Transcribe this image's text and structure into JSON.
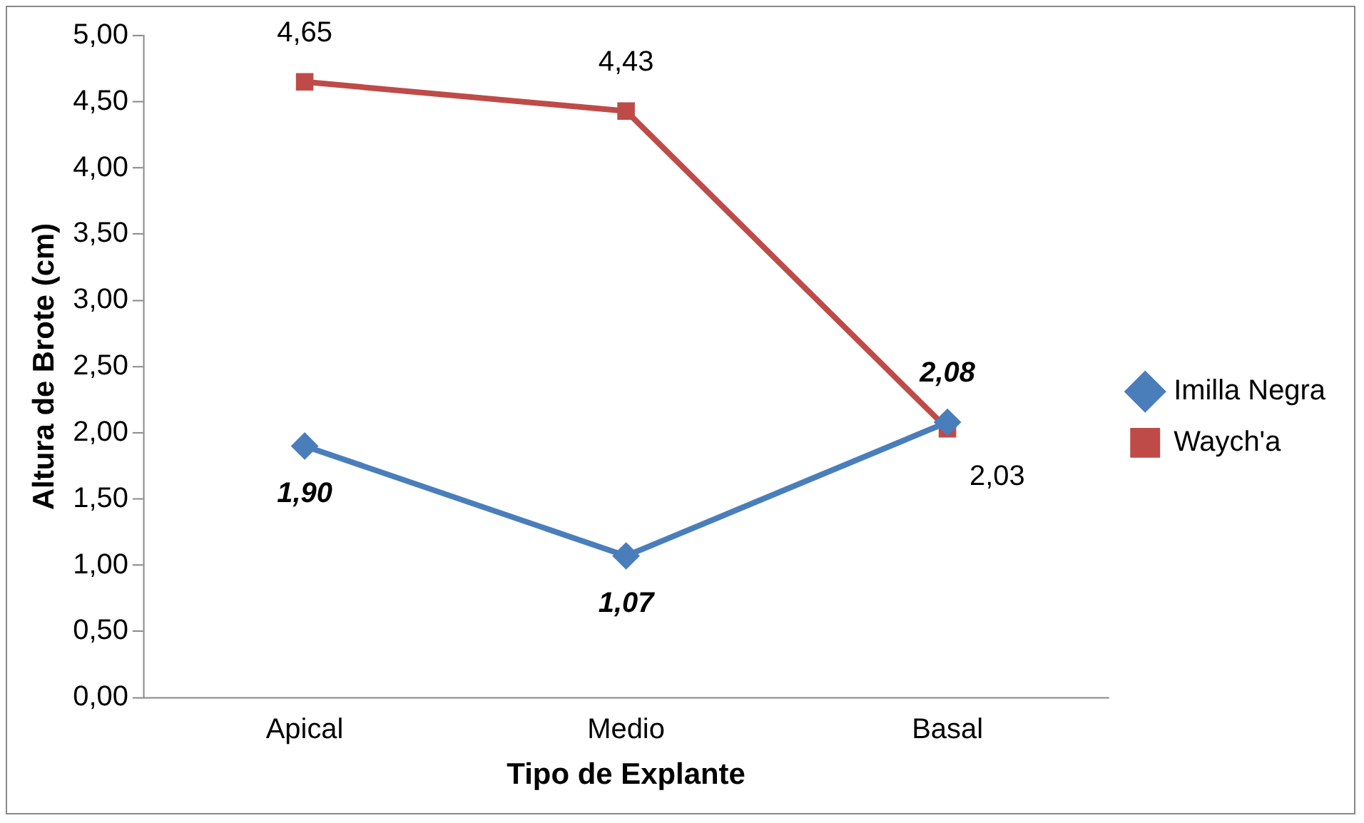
{
  "chart_data": {
    "type": "line",
    "xlabel": "Tipo de Explante",
    "ylabel": "Altura de Brote (cm)",
    "categories": [
      "Apical",
      "Medio",
      "Basal"
    ],
    "series": [
      {
        "name": "Imilla Negra",
        "color": "#4a7ebb",
        "marker": "diamond",
        "values": [
          1.9,
          1.07,
          2.08
        ],
        "value_labels": [
          "1,90",
          "1,07",
          "2,08"
        ]
      },
      {
        "name": "Waych'a",
        "color": "#be4b48",
        "marker": "square",
        "values": [
          4.65,
          4.43,
          2.03
        ],
        "value_labels": [
          "4,65",
          "4,43",
          "2,03"
        ]
      }
    ],
    "ylim": [
      0,
      5
    ],
    "yticks": [
      {
        "value": 0,
        "label": "0,00"
      },
      {
        "value": 0.5,
        "label": "0,50"
      },
      {
        "value": 1,
        "label": "1,00"
      },
      {
        "value": 1.5,
        "label": "1,50"
      },
      {
        "value": 2,
        "label": "2,00"
      },
      {
        "value": 2.5,
        "label": "2,50"
      },
      {
        "value": 3,
        "label": "3,00"
      },
      {
        "value": 3.5,
        "label": "3,50"
      },
      {
        "value": 4,
        "label": "4,00"
      },
      {
        "value": 4.5,
        "label": "4,50"
      },
      {
        "value": 5,
        "label": "5,00"
      }
    ],
    "grid": false,
    "legend": "right",
    "line_style": "solid"
  }
}
